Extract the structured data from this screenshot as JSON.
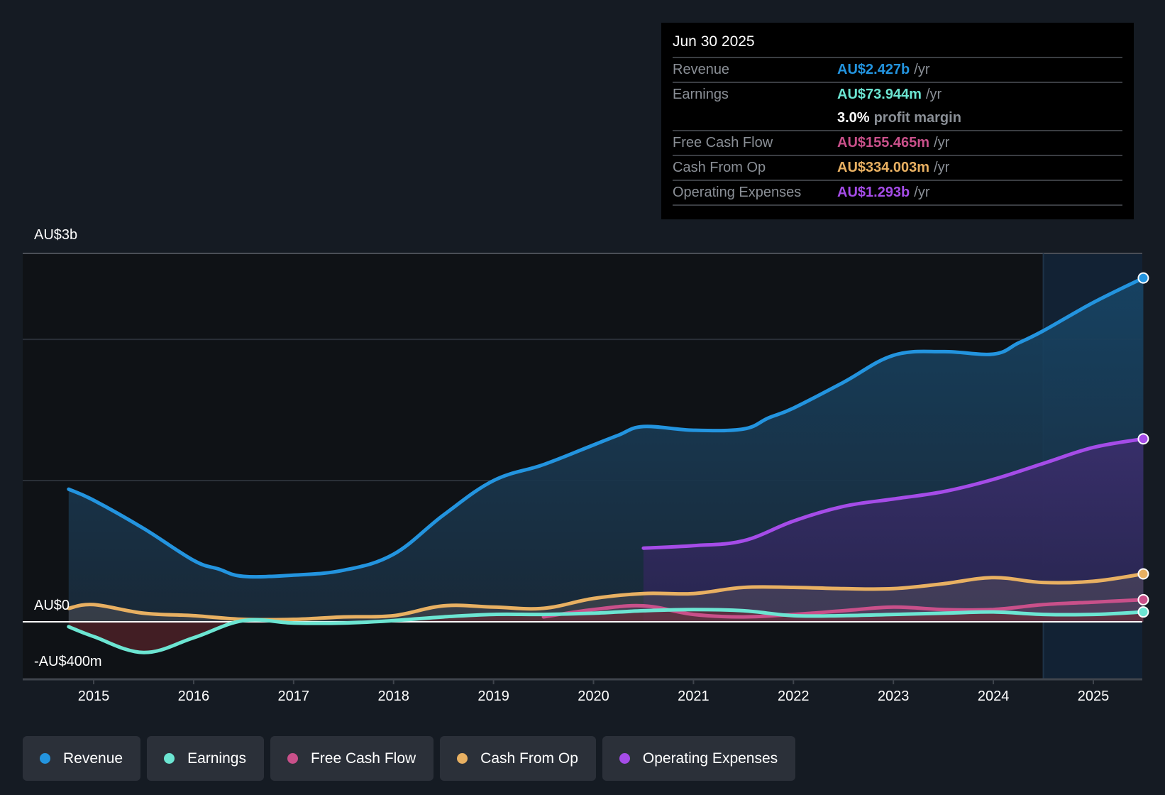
{
  "tooltip": {
    "date": "Jun 30 2025",
    "rows": [
      {
        "label": "Revenue",
        "value": "AU$2.427b",
        "unit": "/yr",
        "color": "#2394df"
      },
      {
        "label": "Earnings",
        "value": "AU$73.944m",
        "unit": "/yr",
        "color": "#6ce5d2"
      },
      {
        "label": "",
        "value": "3.0%",
        "unit": "profit margin"
      },
      {
        "label": "Free Cash Flow",
        "value": "AU$155.465m",
        "unit": "/yr",
        "color": "#c9508a"
      },
      {
        "label": "Cash From Op",
        "value": "AU$334.003m",
        "unit": "/yr",
        "color": "#e8b062"
      },
      {
        "label": "Operating Expenses",
        "value": "AU$1.293b",
        "unit": "/yr",
        "color": "#a54ce8"
      }
    ]
  },
  "legend": [
    {
      "label": "Revenue",
      "color": "#2394df"
    },
    {
      "label": "Earnings",
      "color": "#6ce5d2"
    },
    {
      "label": "Free Cash Flow",
      "color": "#c9508a"
    },
    {
      "label": "Cash From Op",
      "color": "#e8b062"
    },
    {
      "label": "Operating Expenses",
      "color": "#a54ce8"
    }
  ],
  "chart_data": {
    "type": "area",
    "title": "",
    "xlabel": "",
    "ylabel": "",
    "y_tick_labels": [
      "AU$3b",
      "AU$0",
      "-AU$400m"
    ],
    "ylim": [
      -0.47,
      3.0
    ],
    "y_unit": "AU$ billions",
    "x_tick_labels": [
      "2015",
      "2016",
      "2017",
      "2018",
      "2019",
      "2020",
      "2021",
      "2022",
      "2023",
      "2024",
      "2025"
    ],
    "xlim": [
      2014.3,
      2025.5
    ],
    "highlight_from": 2024.5,
    "series": [
      {
        "name": "Revenue",
        "color": "#2394df",
        "x": [
          2014.75,
          2015.0,
          2015.5,
          2016.0,
          2016.25,
          2016.5,
          2017.0,
          2017.5,
          2018.0,
          2018.5,
          2019.0,
          2019.5,
          2020.0,
          2020.25,
          2020.5,
          2021.0,
          2021.5,
          2021.75,
          2022.0,
          2022.5,
          2023.0,
          2023.5,
          2024.0,
          2024.25,
          2024.5,
          2025.0,
          2025.5
        ],
        "y": [
          1.08,
          0.99,
          0.76,
          0.5,
          0.43,
          0.37,
          0.38,
          0.42,
          0.55,
          0.87,
          1.15,
          1.28,
          1.44,
          1.52,
          1.59,
          1.56,
          1.57,
          1.66,
          1.74,
          1.95,
          2.17,
          2.2,
          2.18,
          2.27,
          2.37,
          2.6,
          2.8
        ]
      },
      {
        "name": "Operating Expenses",
        "color": "#a54ce8",
        "x": [
          2020.5,
          2021.0,
          2021.5,
          2022.0,
          2022.5,
          2023.0,
          2023.5,
          2024.0,
          2024.5,
          2025.0,
          2025.5
        ],
        "y": [
          0.6,
          0.62,
          0.66,
          0.82,
          0.94,
          1.0,
          1.06,
          1.16,
          1.29,
          1.42,
          1.49
        ]
      },
      {
        "name": "Cash From Op",
        "color": "#e8b062",
        "x": [
          2014.75,
          2015.0,
          2015.5,
          2016.0,
          2016.5,
          2017.0,
          2017.5,
          2018.0,
          2018.5,
          2019.0,
          2019.5,
          2020.0,
          2020.5,
          2021.0,
          2021.5,
          2022.0,
          2022.5,
          2023.0,
          2023.5,
          2024.0,
          2024.5,
          2025.0,
          2025.5
        ],
        "y": [
          0.11,
          0.14,
          0.07,
          0.05,
          0.02,
          0.02,
          0.04,
          0.05,
          0.13,
          0.12,
          0.11,
          0.19,
          0.23,
          0.23,
          0.28,
          0.28,
          0.27,
          0.27,
          0.31,
          0.36,
          0.32,
          0.33,
          0.39
        ]
      },
      {
        "name": "Free Cash Flow",
        "color": "#c9508a",
        "x": [
          2019.5,
          2020.0,
          2020.5,
          2021.0,
          2021.5,
          2022.0,
          2022.5,
          2023.0,
          2023.5,
          2024.0,
          2024.5,
          2025.0,
          2025.5
        ],
        "y": [
          0.04,
          0.1,
          0.13,
          0.06,
          0.04,
          0.06,
          0.09,
          0.12,
          0.1,
          0.1,
          0.14,
          0.16,
          0.18
        ]
      },
      {
        "name": "Earnings",
        "color": "#6ce5d2",
        "x": [
          2014.75,
          2015.0,
          2015.5,
          2016.0,
          2016.5,
          2017.0,
          2017.5,
          2018.0,
          2018.5,
          2019.0,
          2019.5,
          2020.0,
          2020.5,
          2021.0,
          2021.5,
          2022.0,
          2022.5,
          2023.0,
          2023.5,
          2024.0,
          2024.5,
          2025.0,
          2025.5
        ],
        "y": [
          -0.04,
          -0.12,
          -0.25,
          -0.13,
          0.01,
          -0.01,
          -0.01,
          0.01,
          0.04,
          0.06,
          0.06,
          0.07,
          0.09,
          0.1,
          0.09,
          0.05,
          0.05,
          0.06,
          0.07,
          0.08,
          0.06,
          0.06,
          0.08
        ]
      }
    ],
    "grid": true,
    "legend_position": "bottom-left"
  }
}
